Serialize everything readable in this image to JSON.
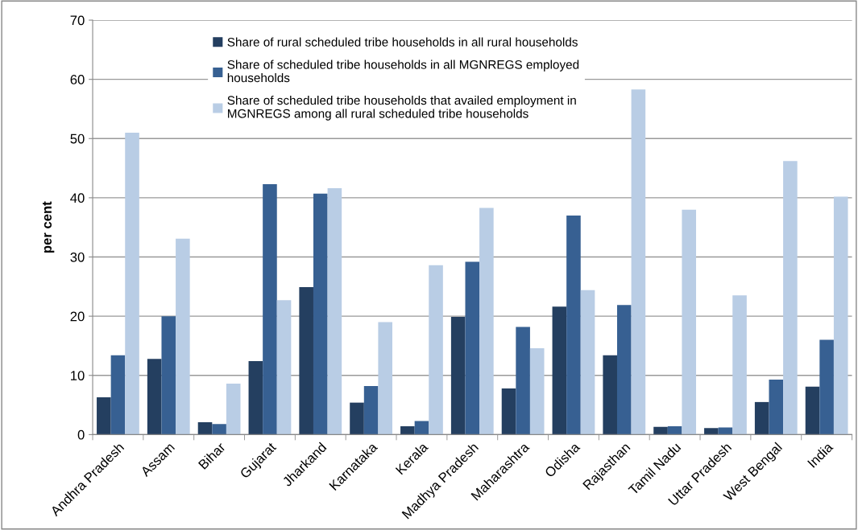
{
  "chart_data": {
    "type": "bar",
    "ylabel": "per cent",
    "categories": [
      "Andhra Pradesh",
      "Assam",
      "Bihar",
      "Gujarat",
      "Jharkand",
      "Karnataka",
      "Kerala",
      "Madhya Pradesh",
      "Maharashtra",
      "Odisha",
      "Rajasthan",
      "Tamil Nadu",
      "Uttar Pradesh",
      "West Bengal",
      "India"
    ],
    "series": [
      {
        "name": "Share of rural scheduled tribe households in all rural households",
        "color": "#243f60",
        "values": [
          6.3,
          12.8,
          2.1,
          12.4,
          24.9,
          5.4,
          1.4,
          19.9,
          7.8,
          21.6,
          13.4,
          1.3,
          1.1,
          5.5,
          8.1
        ]
      },
      {
        "name": "Share of scheduled tribe households in all MGNREGS employed households",
        "color": "#376092",
        "values": [
          13.4,
          20.0,
          1.8,
          42.3,
          40.7,
          8.2,
          2.3,
          29.2,
          18.2,
          37.0,
          21.9,
          1.4,
          1.2,
          9.3,
          16.0
        ]
      },
      {
        "name": "Share of scheduled tribe households that availed employment in MGNREGS among all rural scheduled tribe households",
        "color": "#b9cde5",
        "values": [
          51.0,
          33.1,
          8.6,
          22.7,
          41.6,
          19.0,
          28.6,
          38.3,
          14.6,
          24.4,
          58.3,
          38.0,
          23.5,
          46.2,
          40.2
        ]
      }
    ],
    "ylim": [
      0,
      70
    ],
    "yticks": [
      0,
      10,
      20,
      30,
      40,
      50,
      60,
      70
    ],
    "grid": "y",
    "legend": "top"
  }
}
